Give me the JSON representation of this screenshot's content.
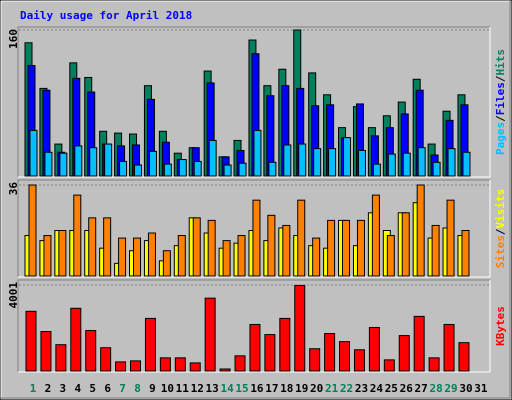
{
  "chart_data": [
    {
      "type": "bar",
      "title": "Daily usage for April 2018",
      "ylim": [
        0,
        160
      ],
      "yticks": [
        160
      ],
      "legend_separator": "/",
      "series": [
        {
          "name": "Hits",
          "color": "#00805c",
          "values": [
            146,
            96,
            35,
            124,
            108,
            49,
            47,
            46,
            99,
            49,
            25,
            31,
            115,
            21,
            39,
            149,
            99,
            117,
            160,
            113,
            89,
            53,
            76,
            53,
            66,
            81,
            106,
            35,
            71,
            89,
            null
          ]
        },
        {
          "name": "Files",
          "color": "#0000ff",
          "values": [
            121,
            94,
            26,
            107,
            92,
            35,
            33,
            34,
            84,
            37,
            18,
            31,
            102,
            21,
            28,
            134,
            88,
            99,
            96,
            77,
            78,
            42,
            79,
            44,
            53,
            68,
            94,
            23,
            61,
            78,
            null
          ]
        },
        {
          "name": "Pages",
          "color": "#00c0ff",
          "values": [
            50,
            26,
            25,
            33,
            31,
            35,
            16,
            12,
            27,
            13,
            18,
            16,
            39,
            12,
            14,
            50,
            15,
            34,
            35,
            30,
            30,
            42,
            28,
            13,
            24,
            25,
            31,
            15,
            30,
            26,
            null
          ]
        }
      ]
    },
    {
      "type": "bar",
      "ylim": [
        0,
        36
      ],
      "yticks": [
        36
      ],
      "legend_separator": "/",
      "series": [
        {
          "name": "Visits",
          "color": "#ffff00",
          "values": [
            16,
            14,
            18,
            18,
            18,
            11,
            5,
            10,
            14,
            6,
            12,
            23,
            17,
            11,
            13,
            18,
            14,
            19,
            16,
            12,
            11,
            22,
            12,
            25,
            18,
            25,
            29,
            15,
            19,
            16,
            null
          ]
        },
        {
          "name": "Sites",
          "color": "#ff8000",
          "values": [
            36,
            16,
            18,
            32,
            23,
            23,
            15,
            15,
            17,
            10,
            16,
            23,
            22,
            14,
            16,
            30,
            24,
            20,
            30,
            15,
            22,
            22,
            22,
            32,
            16,
            25,
            36,
            20,
            30,
            18,
            null
          ]
        }
      ]
    },
    {
      "type": "bar",
      "ylim": [
        0,
        4001
      ],
      "yticks": [
        4001
      ],
      "categories": [
        "1",
        "2",
        "3",
        "4",
        "5",
        "6",
        "7",
        "8",
        "9",
        "10",
        "11",
        "12",
        "13",
        "14",
        "15",
        "16",
        "17",
        "18",
        "19",
        "20",
        "21",
        "22",
        "23",
        "24",
        "25",
        "26",
        "27",
        "28",
        "29",
        "30",
        "31"
      ],
      "category_colors": [
        "#00805c",
        "#000000",
        "#000000",
        "#000000",
        "#000000",
        "#000000",
        "#00805c",
        "#00805c",
        "#000000",
        "#000000",
        "#000000",
        "#000000",
        "#000000",
        "#00805c",
        "#00805c",
        "#000000",
        "#000000",
        "#000000",
        "#000000",
        "#000000",
        "#00805c",
        "#00805c",
        "#000000",
        "#000000",
        "#000000",
        "#000000",
        "#000000",
        "#00805c",
        "#00805c",
        "#000000",
        "#000000"
      ],
      "series": [
        {
          "name": "KBytes",
          "color": "#ff0000",
          "values": [
            2777,
            1836,
            1224,
            2918,
            1883,
            1083,
            424,
            471,
            2447,
            612,
            612,
            377,
            3389,
            94,
            706,
            2165,
            1695,
            2447,
            3980,
            1036,
            1742,
            1365,
            988,
            2024,
            518,
            1648,
            2542,
            612,
            2165,
            1318,
            null
          ]
        }
      ]
    }
  ]
}
